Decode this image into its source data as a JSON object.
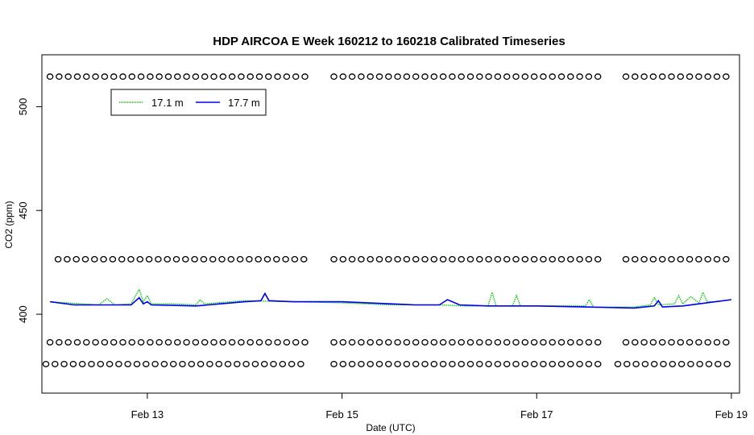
{
  "chart_data": {
    "type": "line",
    "title": "HDP AIRCOA E  Week 160212 to 160218  Calibrated Timeseries",
    "xlabel": "Date (UTC)",
    "ylabel": "CO2 (ppm)",
    "x_domain": [
      "2016-02-11T22:00",
      "2016-02-19T02:00"
    ],
    "ylim": [
      362,
      525
    ],
    "x_ticks": [
      {
        "date": "2016-02-13",
        "label": "Feb 13"
      },
      {
        "date": "2016-02-15",
        "label": "Feb 15"
      },
      {
        "date": "2016-02-17",
        "label": "Feb 17"
      },
      {
        "date": "2016-02-19",
        "label": "Feb 19"
      }
    ],
    "y_ticks": [
      {
        "value": 400,
        "label": "400"
      },
      {
        "value": 450,
        "label": "450"
      },
      {
        "value": 500,
        "label": "500"
      }
    ],
    "legend": {
      "position": "top-left",
      "entries": [
        {
          "label": "17.1 m",
          "color": "#00cc00"
        },
        {
          "label": "17.7 m",
          "color": "#0000ee"
        }
      ]
    },
    "series": [
      {
        "name": "17.1 m",
        "color": "#00cc00",
        "points": [
          [
            "2016-02-12T00:00",
            406
          ],
          [
            "2016-02-12T12:00",
            404.5
          ],
          [
            "2016-02-12T14:00",
            407.5
          ],
          [
            "2016-02-12T16:00",
            404.5
          ],
          [
            "2016-02-12T20:00",
            405
          ],
          [
            "2016-02-12T22:00",
            412
          ],
          [
            "2016-02-12T23:00",
            406
          ],
          [
            "2016-02-13T00:00",
            409
          ],
          [
            "2016-02-13T01:00",
            405
          ],
          [
            "2016-02-13T06:00",
            405
          ],
          [
            "2016-02-13T12:00",
            404.5
          ],
          [
            "2016-02-13T13:00",
            407
          ],
          [
            "2016-02-13T14:00",
            405
          ],
          [
            "2016-02-14T00:00",
            406.5
          ],
          [
            "2016-02-14T12:00",
            406
          ],
          [
            "2016-02-15T00:00",
            405.5
          ],
          [
            "2016-02-15T12:00",
            404.5
          ],
          [
            "2016-02-16T00:00",
            404.5
          ],
          [
            "2016-02-16T06:00",
            404
          ],
          [
            "2016-02-16T12:00",
            404
          ],
          [
            "2016-02-16T13:00",
            410.5
          ],
          [
            "2016-02-16T14:00",
            404
          ],
          [
            "2016-02-16T18:00",
            404
          ],
          [
            "2016-02-16T19:00",
            409
          ],
          [
            "2016-02-16T20:00",
            404
          ],
          [
            "2016-02-17T12:00",
            404
          ],
          [
            "2016-02-17T13:00",
            407
          ],
          [
            "2016-02-17T14:00",
            403.5
          ],
          [
            "2016-02-18T00:00",
            403.5
          ],
          [
            "2016-02-18T04:00",
            404.5
          ],
          [
            "2016-02-18T05:00",
            408
          ],
          [
            "2016-02-18T06:00",
            404.5
          ],
          [
            "2016-02-18T10:00",
            405
          ],
          [
            "2016-02-18T11:00",
            409
          ],
          [
            "2016-02-18T12:00",
            405
          ],
          [
            "2016-02-18T14:00",
            408.5
          ],
          [
            "2016-02-18T16:00",
            405.5
          ],
          [
            "2016-02-18T17:00",
            410.5
          ],
          [
            "2016-02-18T18:00",
            406
          ],
          [
            "2016-02-18T20:00",
            406
          ],
          [
            "2016-02-19T00:00",
            407
          ]
        ]
      },
      {
        "name": "17.7 m",
        "color": "#0000ee",
        "points": [
          [
            "2016-02-12T00:00",
            406
          ],
          [
            "2016-02-12T06:00",
            404.5
          ],
          [
            "2016-02-12T12:00",
            404.5
          ],
          [
            "2016-02-12T20:00",
            404.5
          ],
          [
            "2016-02-12T22:00",
            408
          ],
          [
            "2016-02-12T23:00",
            405
          ],
          [
            "2016-02-13T00:00",
            406
          ],
          [
            "2016-02-13T01:00",
            404.5
          ],
          [
            "2016-02-13T12:00",
            404
          ],
          [
            "2016-02-13T18:00",
            405
          ],
          [
            "2016-02-14T00:00",
            406
          ],
          [
            "2016-02-14T04:00",
            406.5
          ],
          [
            "2016-02-14T05:00",
            410
          ],
          [
            "2016-02-14T06:00",
            406.5
          ],
          [
            "2016-02-14T12:00",
            406
          ],
          [
            "2016-02-15T00:00",
            406
          ],
          [
            "2016-02-15T12:00",
            405
          ],
          [
            "2016-02-15T18:00",
            404.5
          ],
          [
            "2016-02-16T00:00",
            404.5
          ],
          [
            "2016-02-16T02:00",
            407
          ],
          [
            "2016-02-16T05:00",
            404.5
          ],
          [
            "2016-02-16T12:00",
            404
          ],
          [
            "2016-02-17T00:00",
            404
          ],
          [
            "2016-02-17T12:00",
            403.5
          ],
          [
            "2016-02-18T00:00",
            403
          ],
          [
            "2016-02-18T05:00",
            404
          ],
          [
            "2016-02-18T06:00",
            406.5
          ],
          [
            "2016-02-18T07:00",
            403.5
          ],
          [
            "2016-02-18T12:00",
            404
          ],
          [
            "2016-02-18T16:00",
            405
          ],
          [
            "2016-02-18T20:00",
            406
          ],
          [
            "2016-02-19T00:00",
            407
          ]
        ]
      }
    ],
    "reference_markers": [
      {
        "value": 514.5,
        "segments": [
          [
            "2016-02-12T00:00",
            "2016-02-14T16:00"
          ],
          [
            "2016-02-14T22:00",
            "2016-02-17T16:00"
          ],
          [
            "2016-02-17T22:00",
            "2016-02-19T00:00"
          ]
        ]
      },
      {
        "value": 426.5,
        "segments": [
          [
            "2016-02-12T02:00",
            "2016-02-14T16:00"
          ],
          [
            "2016-02-14T22:00",
            "2016-02-17T16:00"
          ],
          [
            "2016-02-17T22:00",
            "2016-02-19T00:00"
          ]
        ]
      },
      {
        "value": 386.5,
        "segments": [
          [
            "2016-02-12T00:00",
            "2016-02-14T16:00"
          ],
          [
            "2016-02-14T22:00",
            "2016-02-17T16:00"
          ],
          [
            "2016-02-17T22:00",
            "2016-02-19T00:00"
          ]
        ]
      },
      {
        "value": 376,
        "segments": [
          [
            "2016-02-11T23:00",
            "2016-02-14T16:00"
          ],
          [
            "2016-02-14T22:00",
            "2016-02-17T16:00"
          ],
          [
            "2016-02-17T20:00",
            "2016-02-19T00:00"
          ]
        ]
      }
    ]
  }
}
